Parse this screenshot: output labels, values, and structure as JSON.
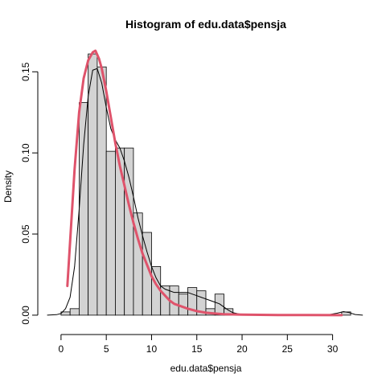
{
  "chart_data": {
    "type": "histogram",
    "title": "Histogram of edu.data$pensja",
    "xlabel": "edu.data$pensja",
    "ylabel": "Density",
    "xlim": [
      -1.5,
      33.5
    ],
    "ylim": [
      -0.005,
      0.165
    ],
    "x_ticks": [
      0,
      5,
      10,
      15,
      20,
      25,
      30
    ],
    "y_ticks": [
      0.0,
      0.05,
      0.1,
      0.15
    ],
    "x_tick_labels": [
      "0",
      "5",
      "10",
      "15",
      "20",
      "25",
      "30"
    ],
    "y_tick_labels": [
      "0.00",
      "0.05",
      "0.10",
      "0.15"
    ],
    "bin_width": 1,
    "bins": [
      {
        "from": 0,
        "to": 1,
        "density": 0.002
      },
      {
        "from": 1,
        "to": 2,
        "density": 0.004
      },
      {
        "from": 2,
        "to": 3,
        "density": 0.131
      },
      {
        "from": 3,
        "to": 4,
        "density": 0.161
      },
      {
        "from": 4,
        "to": 5,
        "density": 0.153
      },
      {
        "from": 5,
        "to": 6,
        "density": 0.101
      },
      {
        "from": 6,
        "to": 7,
        "density": 0.103
      },
      {
        "from": 7,
        "to": 8,
        "density": 0.103
      },
      {
        "from": 8,
        "to": 9,
        "density": 0.063
      },
      {
        "from": 9,
        "to": 10,
        "density": 0.051
      },
      {
        "from": 10,
        "to": 11,
        "density": 0.03
      },
      {
        "from": 11,
        "to": 12,
        "density": 0.018
      },
      {
        "from": 12,
        "to": 13,
        "density": 0.018
      },
      {
        "from": 13,
        "to": 14,
        "density": 0.013
      },
      {
        "from": 14,
        "to": 15,
        "density": 0.017
      },
      {
        "from": 15,
        "to": 16,
        "density": 0.015
      },
      {
        "from": 16,
        "to": 17,
        "density": 0.004
      },
      {
        "from": 17,
        "to": 18,
        "density": 0.013
      },
      {
        "from": 18,
        "to": 19,
        "density": 0.004
      },
      {
        "from": 31,
        "to": 32,
        "density": 0.002
      }
    ],
    "series": [
      {
        "kind": "kernel-density",
        "color": "#000000",
        "points": [
          [
            -1.5,
            0.0
          ],
          [
            -0.5,
            0.0003
          ],
          [
            0.0,
            0.001
          ],
          [
            0.5,
            0.004
          ],
          [
            1.0,
            0.011
          ],
          [
            1.5,
            0.03
          ],
          [
            2.0,
            0.065
          ],
          [
            2.5,
            0.105
          ],
          [
            3.0,
            0.135
          ],
          [
            3.5,
            0.151
          ],
          [
            4.0,
            0.152
          ],
          [
            4.5,
            0.143
          ],
          [
            5.0,
            0.128
          ],
          [
            5.5,
            0.115
          ],
          [
            6.0,
            0.108
          ],
          [
            6.5,
            0.103
          ],
          [
            7.0,
            0.095
          ],
          [
            7.5,
            0.085
          ],
          [
            8.0,
            0.073
          ],
          [
            8.5,
            0.06
          ],
          [
            9.0,
            0.049
          ],
          [
            9.5,
            0.039
          ],
          [
            10.0,
            0.03
          ],
          [
            10.5,
            0.023
          ],
          [
            11.0,
            0.018
          ],
          [
            11.5,
            0.016
          ],
          [
            12.0,
            0.015
          ],
          [
            12.5,
            0.014
          ],
          [
            13.0,
            0.014
          ],
          [
            13.5,
            0.014
          ],
          [
            14.0,
            0.014
          ],
          [
            14.5,
            0.013
          ],
          [
            15.0,
            0.012
          ],
          [
            15.5,
            0.011
          ],
          [
            16.0,
            0.01
          ],
          [
            16.5,
            0.009
          ],
          [
            17.0,
            0.008
          ],
          [
            17.5,
            0.007
          ],
          [
            18.0,
            0.005
          ],
          [
            18.5,
            0.003
          ],
          [
            19.0,
            0.0015
          ],
          [
            20.0,
            0.0004
          ],
          [
            22.0,
            0.0001
          ],
          [
            28.0,
            0.0001
          ],
          [
            29.5,
            0.0003
          ],
          [
            30.5,
            0.0012
          ],
          [
            31.2,
            0.0022
          ],
          [
            31.8,
            0.0016
          ],
          [
            32.5,
            0.0004
          ],
          [
            33.3,
            0.0
          ]
        ]
      },
      {
        "kind": "fitted-density",
        "color": "#df536b",
        "points": [
          [
            0.7,
            0.018
          ],
          [
            1.0,
            0.045
          ],
          [
            1.5,
            0.09
          ],
          [
            2.0,
            0.125
          ],
          [
            2.5,
            0.146
          ],
          [
            3.0,
            0.157
          ],
          [
            3.5,
            0.162
          ],
          [
            3.8,
            0.163
          ],
          [
            4.2,
            0.158
          ],
          [
            4.5,
            0.152
          ],
          [
            5.0,
            0.138
          ],
          [
            5.5,
            0.122
          ],
          [
            6.0,
            0.106
          ],
          [
            6.5,
            0.092
          ],
          [
            7.0,
            0.08
          ],
          [
            7.5,
            0.068
          ],
          [
            8.0,
            0.057
          ],
          [
            8.5,
            0.047
          ],
          [
            9.0,
            0.038
          ],
          [
            9.5,
            0.031
          ],
          [
            10.0,
            0.024
          ],
          [
            10.5,
            0.019
          ],
          [
            11.0,
            0.015
          ],
          [
            11.5,
            0.012
          ],
          [
            12.0,
            0.009
          ],
          [
            12.5,
            0.007
          ],
          [
            13.0,
            0.006
          ],
          [
            14.0,
            0.004
          ],
          [
            15.0,
            0.0025
          ],
          [
            16.0,
            0.0015
          ],
          [
            17.0,
            0.001
          ],
          [
            18.0,
            0.0006
          ],
          [
            20.0,
            0.0003
          ],
          [
            24.0,
            0.0001
          ],
          [
            31.0,
            0.0
          ]
        ]
      }
    ],
    "bar_fill": "#d3d3d3",
    "grid": false
  }
}
